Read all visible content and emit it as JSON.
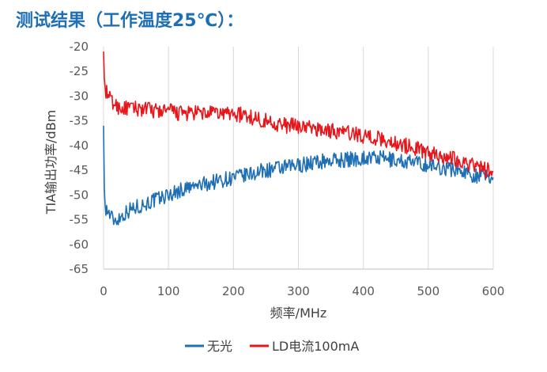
{
  "heading": "测试结果（工作温度25℃）：",
  "chart_data": {
    "type": "line",
    "xlabel": "频率/MHz",
    "ylabel": "TIA输出功率/dBm",
    "xlim": [
      0,
      600
    ],
    "ylim": [
      -65,
      -20
    ],
    "x_ticks": [
      0,
      100,
      200,
      300,
      400,
      500,
      600
    ],
    "y_ticks": [
      -20,
      -25,
      -30,
      -35,
      -40,
      -45,
      -50,
      -55,
      -60,
      -65
    ],
    "grid": "vertical",
    "legend_position": "bottom",
    "series": [
      {
        "name": "无光",
        "color": "#1f6fb5",
        "x": [
          0,
          1,
          2,
          5,
          10,
          15,
          20,
          30,
          40,
          50,
          60,
          80,
          100,
          120,
          150,
          180,
          200,
          220,
          250,
          280,
          300,
          320,
          350,
          380,
          400,
          420,
          450,
          480,
          500,
          520,
          550,
          570,
          580,
          600
        ],
        "y": [
          -36,
          -48,
          -52,
          -53,
          -54,
          -55,
          -55,
          -54,
          -53,
          -52.5,
          -52,
          -51,
          -50,
          -49,
          -48,
          -47,
          -46.5,
          -46,
          -45,
          -44.5,
          -44,
          -43.5,
          -43,
          -42.8,
          -42.5,
          -42.5,
          -43,
          -43.5,
          -44,
          -44.5,
          -45,
          -46,
          -46,
          -46.5
        ]
      },
      {
        "name": "LD电流100mA",
        "color": "#e8161b",
        "x": [
          0,
          1,
          2,
          5,
          10,
          15,
          20,
          30,
          40,
          50,
          60,
          80,
          100,
          120,
          150,
          180,
          200,
          220,
          250,
          280,
          300,
          320,
          350,
          380,
          400,
          420,
          450,
          480,
          500,
          520,
          550,
          570,
          580,
          600
        ],
        "y": [
          -21,
          -26,
          -28,
          -29.5,
          -30.5,
          -31.5,
          -32,
          -32.5,
          -32.5,
          -32.5,
          -32.5,
          -33,
          -33,
          -33.5,
          -33.5,
          -33.5,
          -33.5,
          -34,
          -35,
          -36,
          -36,
          -36.5,
          -37,
          -37.5,
          -38,
          -38.5,
          -39.5,
          -40.5,
          -41.5,
          -42,
          -43,
          -44,
          -44.5,
          -45.5
        ]
      }
    ]
  }
}
